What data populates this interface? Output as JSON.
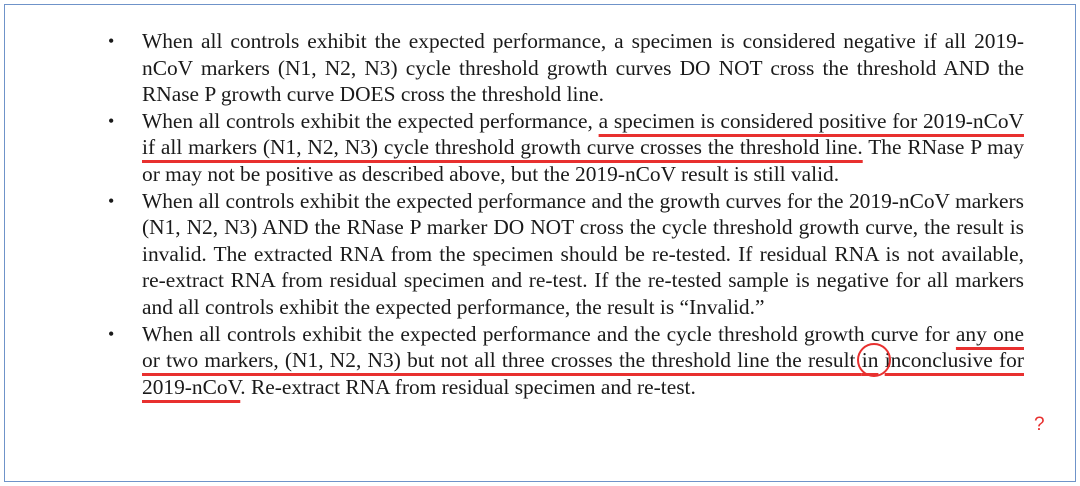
{
  "document": {
    "bullet_char": "•",
    "bullets": [
      {
        "text": "When all controls exhibit the expected performance, a specimen is considered negative if all 2019-nCoV markers (N1, N2, N3) cycle threshold growth curves DO NOT cross the threshold AND the RNase P growth curve DOES cross the threshold line."
      },
      {
        "before": "When all controls exhibit the expected performance, ",
        "highlight": "a specimen is considered positive for 2019-nCoV if all markers (N1, N2, N3) cycle threshold growth curve crosses the threshold line.",
        "after": " The RNase P may or may not be positive as described above, but the 2019-nCoV result is still valid."
      },
      {
        "text": "When all controls exhibit the expected performance and the growth curves for the 2019-nCoV markers (N1, N2, N3) AND the RNase P marker DO NOT cross the cycle threshold growth curve, the result is invalid. The extracted RNA from the specimen should be re-tested. If residual RNA is not available, re-extract RNA from residual specimen and re-test. If the re-tested sample is negative for all markers and all controls exhibit the expected performance, the result is “Invalid.”"
      },
      {
        "before": "When all controls exhibit the expected performance and the cycle threshold growth curve for ",
        "highlight": "any one or two markers, (N1, N2, N3) but not all three crosses the threshold line the result ",
        "circled": "in",
        "highlight2": "inconclusive for 2019-nCoV",
        "after": ". Re-extract RNA from residual specimen and re-test."
      }
    ]
  },
  "annotation": {
    "question_mark": "?",
    "color": "#e8302f"
  }
}
